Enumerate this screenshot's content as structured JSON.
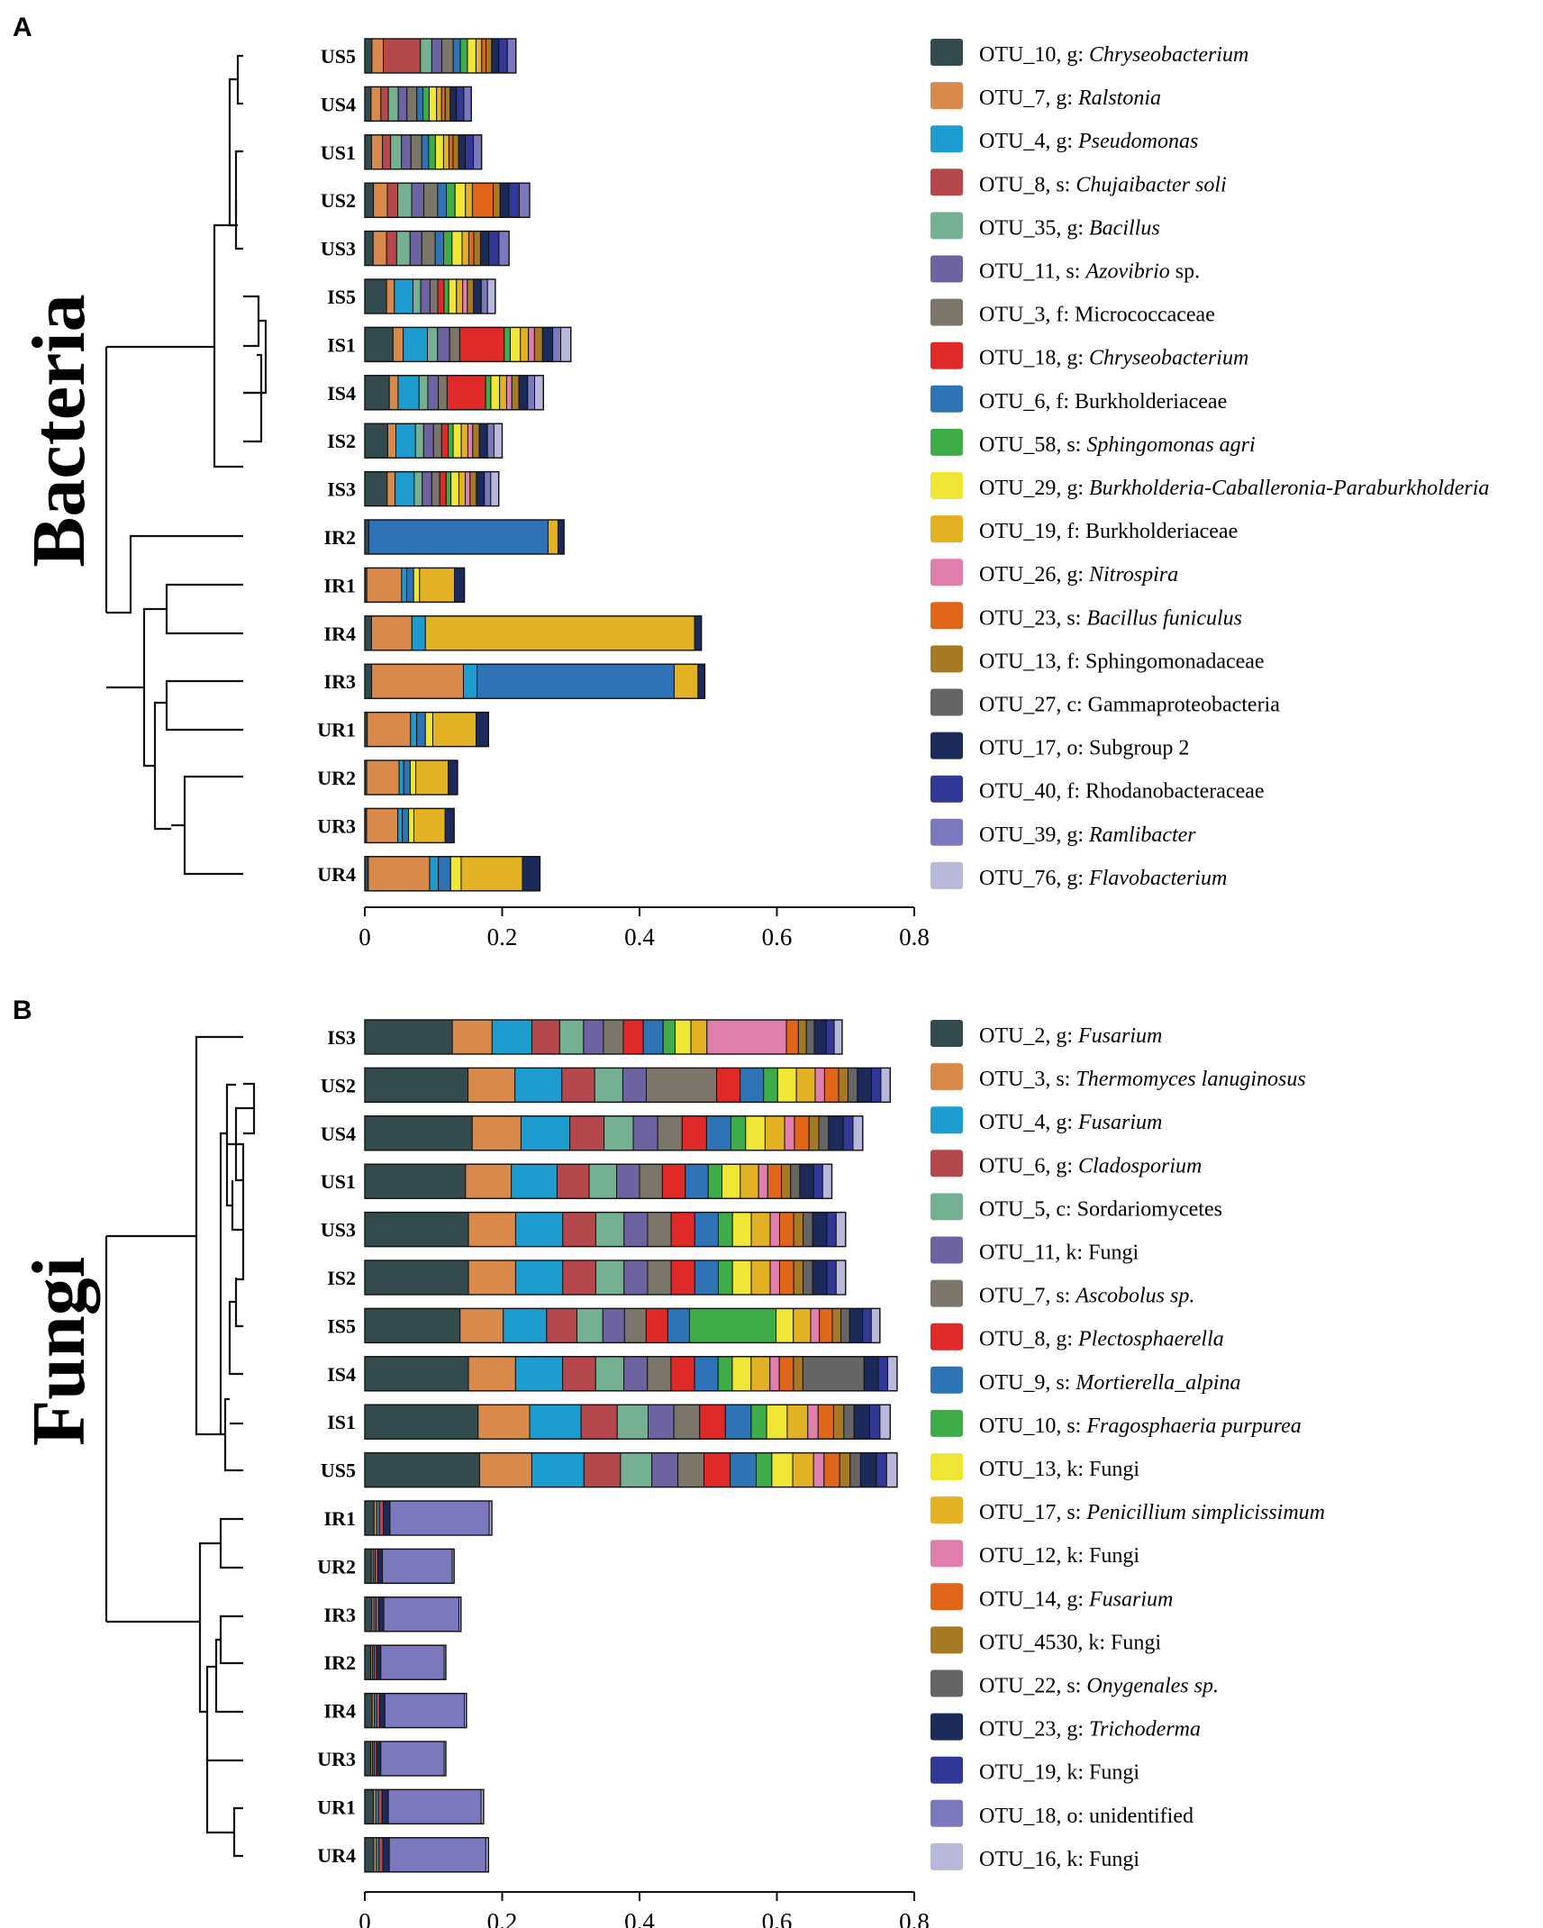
{
  "chart_data": [
    {
      "type": "bar",
      "panel": "A",
      "title": "Bacteria",
      "orientation": "horizontal",
      "stacked": true,
      "xlim": [
        0,
        0.8
      ],
      "x_ticks": [
        "0",
        "0.2",
        "0.4",
        "0.6",
        "0.8"
      ],
      "samples": [
        "US5",
        "US4",
        "US1",
        "US2",
        "US3",
        "IS5",
        "IS1",
        "IS4",
        "IS2",
        "IS3",
        "IR2",
        "IR1",
        "IR4",
        "IR3",
        "UR1",
        "UR2",
        "UR3",
        "UR4"
      ],
      "totals": [
        0.22,
        0.155,
        0.17,
        0.24,
        0.21,
        0.19,
        0.3,
        0.26,
        0.2,
        0.195,
        0.29,
        0.145,
        0.49,
        0.495,
        0.18,
        0.135,
        0.13,
        0.255
      ],
      "legend": [
        {
          "name": "OTU_10",
          "rank": "g",
          "taxon": "Chryseobacterium",
          "italic": true,
          "color": "#334a4e"
        },
        {
          "name": "OTU_7",
          "rank": "g",
          "taxon": "Ralstonia",
          "italic": true,
          "color": "#d98a4a"
        },
        {
          "name": "OTU_4",
          "rank": "g",
          "taxon": "Pseudomonas",
          "italic": true,
          "color": "#1e9ccf"
        },
        {
          "name": "OTU_8",
          "rank": "s",
          "taxon": "Chujaibacter soli",
          "italic": true,
          "color": "#b5484c"
        },
        {
          "name": "OTU_35",
          "rank": "g",
          "taxon": "Bacillus",
          "italic": true,
          "color": "#76b092"
        },
        {
          "name": "OTU_11",
          "rank": "s",
          "taxon": "Azovibrio",
          "suffix": " sp.",
          "italic": true,
          "color": "#6d63a0"
        },
        {
          "name": "OTU_3",
          "rank": "f",
          "taxon": "Micrococcaceae",
          "italic": false,
          "color": "#7c766a"
        },
        {
          "name": "OTU_18",
          "rank": "g",
          "taxon": "Chryseobacterium",
          "italic": true,
          "color": "#e02a2a"
        },
        {
          "name": "OTU_6",
          "rank": "f",
          "taxon": "Burkholderiaceae",
          "italic": false,
          "color": "#2e73b5"
        },
        {
          "name": "OTU_58",
          "rank": "s",
          "taxon": "Sphingomonas agri",
          "italic": true,
          "color": "#3fac4a"
        },
        {
          "name": "OTU_29",
          "rank": "g",
          "taxon": "Burkholderia-Caballeronia-Paraburkholderia",
          "italic": true,
          "color": "#f0e636"
        },
        {
          "name": "OTU_19",
          "rank": "f",
          "taxon": "Burkholderiaceae",
          "italic": false,
          "color": "#e2b124"
        },
        {
          "name": "OTU_26",
          "rank": "g",
          "taxon": "Nitrospira",
          "italic": true,
          "color": "#e07fae"
        },
        {
          "name": "OTU_23",
          "rank": "s",
          "taxon": "Bacillus funiculus",
          "italic": true,
          "color": "#e0661a"
        },
        {
          "name": "OTU_13",
          "rank": "f",
          "taxon": "Sphingomonadaceae",
          "italic": false,
          "color": "#a67a24"
        },
        {
          "name": "OTU_27",
          "rank": "c",
          "taxon": "Gammaproteobacteria",
          "italic": false,
          "color": "#656565"
        },
        {
          "name": "OTU_17",
          "rank": "o",
          "taxon": "Subgroup 2",
          "italic": false,
          "color": "#1c2a5a"
        },
        {
          "name": "OTU_40",
          "rank": "f",
          "taxon": "Rhodanobacteraceae",
          "italic": false,
          "color": "#323895"
        },
        {
          "name": "OTU_39",
          "rank": "g",
          "taxon": "Ramlibacter",
          "italic": true,
          "color": "#7b78bd"
        },
        {
          "name": "OTU_76",
          "rank": "g",
          "taxon": "Flavobacterium",
          "italic": true,
          "color": "#b8b7dc"
        }
      ],
      "tree_order_note": "dendrogram at left clusters US/IS samples apart from IR/UR samples"
    },
    {
      "type": "bar",
      "panel": "B",
      "title": "Fungi",
      "orientation": "horizontal",
      "stacked": true,
      "xlim": [
        0,
        0.8
      ],
      "x_ticks": [
        "0",
        "0.2",
        "0.4",
        "0.6",
        "0.8"
      ],
      "samples": [
        "IS3",
        "US2",
        "US4",
        "US1",
        "US3",
        "IS2",
        "IS5",
        "IS4",
        "IS1",
        "US5",
        "IR1",
        "UR2",
        "IR3",
        "IR2",
        "IR4",
        "UR3",
        "UR1",
        "UR4"
      ],
      "totals": [
        0.695,
        0.765,
        0.725,
        0.68,
        0.7,
        0.7,
        0.75,
        0.775,
        0.765,
        0.775,
        0.185,
        0.13,
        0.14,
        0.118,
        0.148,
        0.118,
        0.173,
        0.18
      ],
      "legend": [
        {
          "name": "OTU_2",
          "rank": "g",
          "taxon": "Fusarium",
          "italic": true,
          "color": "#334a4e"
        },
        {
          "name": "OTU_3",
          "rank": "s",
          "taxon": "Thermomyces lanuginosus",
          "italic": true,
          "color": "#d98a4a"
        },
        {
          "name": "OTU_4",
          "rank": "g",
          "taxon": "Fusarium",
          "italic": true,
          "color": "#1e9ccf"
        },
        {
          "name": "OTU_6",
          "rank": "g",
          "taxon": "Cladosporium",
          "italic": true,
          "color": "#b5484c"
        },
        {
          "name": "OTU_5",
          "rank": "c",
          "taxon": "Sordariomycetes",
          "italic": false,
          "color": "#76b092"
        },
        {
          "name": "OTU_11",
          "rank": "k",
          "taxon": "Fungi",
          "italic": false,
          "color": "#6d63a0"
        },
        {
          "name": "OTU_7",
          "rank": "s",
          "taxon": "Ascobolus sp.",
          "italic": true,
          "color": "#7c766a"
        },
        {
          "name": "OTU_8",
          "rank": "g",
          "taxon": "Plectosphaerella",
          "italic": true,
          "color": "#e02a2a"
        },
        {
          "name": "OTU_9",
          "rank": "s",
          "taxon": "Mortierella_alpina",
          "italic": true,
          "color": "#2e73b5"
        },
        {
          "name": "OTU_10",
          "rank": "s",
          "taxon": "Fragosphaeria purpurea",
          "italic": true,
          "color": "#3fac4a"
        },
        {
          "name": "OTU_13",
          "rank": "k",
          "taxon": "Fungi",
          "italic": false,
          "color": "#f0e636"
        },
        {
          "name": "OTU_17",
          "rank": "s",
          "taxon": "Penicillium simplicissimum",
          "italic": true,
          "color": "#e2b124"
        },
        {
          "name": "OTU_12",
          "rank": "k",
          "taxon": "Fungi",
          "italic": false,
          "color": "#e07fae"
        },
        {
          "name": "OTU_14",
          "rank": "g",
          "taxon": "Fusarium",
          "italic": true,
          "color": "#e0661a"
        },
        {
          "name": "OTU_4530",
          "rank": "k",
          "taxon": "Fungi",
          "italic": false,
          "color": "#a67a24"
        },
        {
          "name": "OTU_22",
          "rank": "s",
          "taxon": "Onygenales sp.",
          "italic": true,
          "color": "#656565"
        },
        {
          "name": "OTU_23",
          "rank": "g",
          "taxon": "Trichoderma",
          "italic": true,
          "color": "#1c2a5a"
        },
        {
          "name": "OTU_19",
          "rank": "k",
          "taxon": "Fungi",
          "italic": false,
          "color": "#323895"
        },
        {
          "name": "OTU_18",
          "rank": "o",
          "taxon": "unidentified",
          "italic": false,
          "color": "#7b78bd"
        },
        {
          "name": "OTU_16",
          "rank": "k",
          "taxon": "Fungi",
          "italic": false,
          "color": "#b8b7dc"
        }
      ],
      "tree_order_note": "dendrogram at left clusters US/IS samples apart from IR/UR samples"
    }
  ]
}
